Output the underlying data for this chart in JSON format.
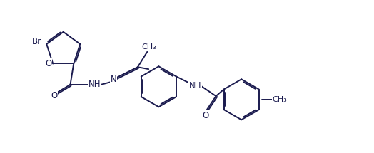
{
  "background_color": "#ffffff",
  "line_color": "#1a1a4e",
  "line_width": 1.4,
  "font_size": 8.5,
  "fig_width": 5.24,
  "fig_height": 2.15,
  "dpi": 100,
  "xlim": [
    0,
    11.0
  ],
  "ylim": [
    0,
    4.5
  ]
}
